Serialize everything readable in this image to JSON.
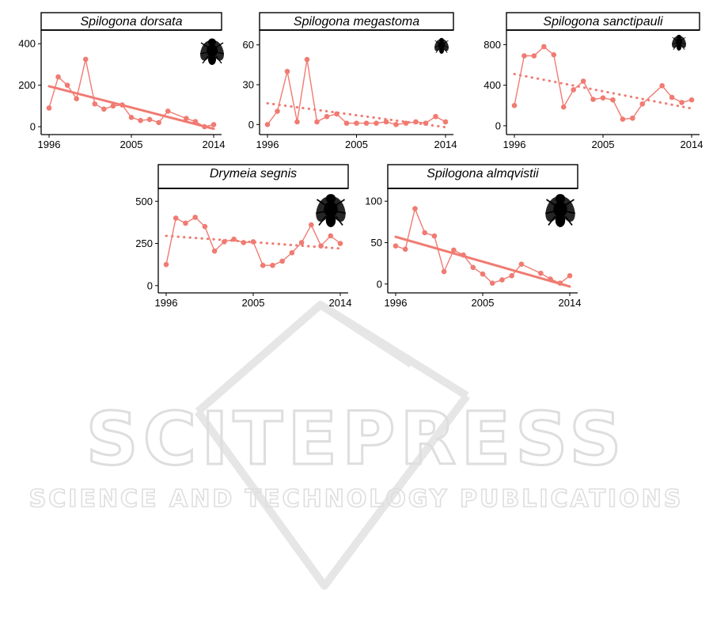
{
  "watermark": {
    "title": "SCITEPRESS",
    "subtitle": "SCIENCE AND TECHNOLOGY PUBLICATIONS"
  },
  "colors": {
    "series": "#F07B72",
    "axis": "#000000",
    "strip": "#FFFFFF",
    "icon": "#000000",
    "watermark": "#DEDEDE"
  },
  "chart_data": [
    {
      "type": "line",
      "title": "Spilogona dorsata",
      "icon": "fly-icon",
      "trend_style": "solid",
      "xlim": [
        1996,
        2014
      ],
      "ylim": [
        -15,
        420
      ],
      "xticks": [
        1996,
        2005,
        2014
      ],
      "yticks": [
        0,
        200,
        400
      ],
      "x": [
        1996,
        1997,
        1998,
        1999,
        2000,
        2001,
        2002,
        2003,
        2004,
        2005,
        2006,
        2007,
        2008,
        2009,
        2011,
        2012,
        2013,
        2014
      ],
      "y": [
        90,
        240,
        200,
        135,
        325,
        110,
        85,
        100,
        105,
        45,
        30,
        35,
        20,
        75,
        40,
        25,
        0,
        10
      ],
      "trend": [
        [
          1996,
          195
        ],
        [
          2014,
          -10
        ]
      ]
    },
    {
      "type": "line",
      "title": "Spilogona megastoma",
      "icon": "fly-icon",
      "trend_style": "dotted",
      "xlim": [
        1996,
        2014
      ],
      "ylim": [
        -4,
        64
      ],
      "xticks": [
        1996,
        2005,
        2014
      ],
      "yticks": [
        0,
        30,
        60
      ],
      "x": [
        1996,
        1997,
        1998,
        1999,
        2000,
        2001,
        2002,
        2003,
        2004,
        2005,
        2006,
        2007,
        2008,
        2009,
        2010,
        2011,
        2012,
        2013,
        2014
      ],
      "y": [
        0,
        10,
        40,
        2,
        49,
        2,
        6,
        8,
        1,
        1,
        1,
        1,
        2,
        0,
        1,
        2,
        1,
        6,
        2
      ],
      "trend": [
        [
          1996,
          16
        ],
        [
          2014,
          -2
        ]
      ]
    },
    {
      "type": "line",
      "title": "Spilogona sanctipauli",
      "icon": "fly-icon",
      "trend_style": "dotted",
      "xlim": [
        1996,
        2014
      ],
      "ylim": [
        -40,
        850
      ],
      "xticks": [
        1996,
        2005,
        2014
      ],
      "yticks": [
        0,
        400,
        800
      ],
      "x": [
        1996,
        1997,
        1998,
        1999,
        2000,
        2001,
        2002,
        2003,
        2004,
        2005,
        2006,
        2007,
        2008,
        2009,
        2011,
        2012,
        2013,
        2014
      ],
      "y": [
        200,
        690,
        690,
        780,
        700,
        185,
        355,
        440,
        260,
        275,
        255,
        65,
        75,
        215,
        395,
        280,
        230,
        255
      ],
      "trend": [
        [
          1996,
          510
        ],
        [
          2014,
          170
        ]
      ]
    },
    {
      "type": "line",
      "title": "Drymeia segnis",
      "icon": "fly-icon",
      "trend_style": "dotted",
      "xlim": [
        1996,
        2014
      ],
      "ylim": [
        -15,
        520
      ],
      "xticks": [
        1996,
        2005,
        2014
      ],
      "yticks": [
        0,
        250,
        500
      ],
      "x": [
        1996,
        1997,
        1998,
        1999,
        2000,
        2001,
        2002,
        2003,
        2004,
        2005,
        2006,
        2007,
        2008,
        2009,
        2010,
        2011,
        2012,
        2013,
        2014
      ],
      "y": [
        125,
        400,
        370,
        405,
        350,
        205,
        260,
        275,
        255,
        260,
        120,
        120,
        145,
        195,
        255,
        360,
        235,
        295,
        250
      ],
      "trend": [
        [
          1996,
          295
        ],
        [
          2014,
          220
        ]
      ]
    },
    {
      "type": "line",
      "title": "Spilogona almqvistii",
      "icon": "fly-icon",
      "trend_style": "solid",
      "xlim": [
        1996,
        2014
      ],
      "ylim": [
        -5,
        104
      ],
      "xticks": [
        1996,
        2005,
        2014
      ],
      "yticks": [
        0,
        50,
        100
      ],
      "x": [
        1996,
        1997,
        1998,
        1999,
        2000,
        2001,
        2002,
        2003,
        2004,
        2005,
        2006,
        2007,
        2008,
        2009,
        2011,
        2012,
        2013,
        2014
      ],
      "y": [
        46,
        42,
        91,
        62,
        58,
        15,
        41,
        35,
        20,
        12,
        1,
        5,
        10,
        24,
        13,
        6,
        1,
        10
      ],
      "trend": [
        [
          1996,
          57
        ],
        [
          2014,
          -3
        ]
      ]
    }
  ]
}
